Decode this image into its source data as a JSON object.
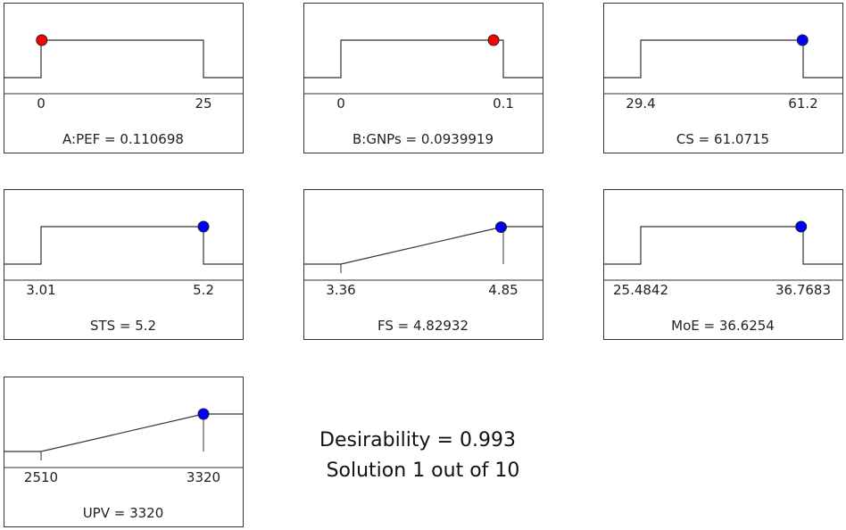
{
  "chart_data": [
    {
      "type": "desirability-ramp",
      "name": "A:PEF",
      "caption": "A:PEF  = 0.110698",
      "low_label": "0",
      "high_label": "25",
      "low": 0,
      "high": 25,
      "value": 0.110698,
      "goal": "in-range",
      "marker_color": "#ff0000"
    },
    {
      "type": "desirability-ramp",
      "name": "B:GNPs",
      "caption": "B:GNPs = 0.0939919",
      "low_label": "0",
      "high_label": "0.1",
      "low": 0,
      "high": 0.1,
      "value": 0.0939919,
      "goal": "in-range",
      "marker_color": "#ff0000"
    },
    {
      "type": "desirability-ramp",
      "name": "CS",
      "caption": "CS = 61.0715",
      "low_label": "29.4",
      "high_label": "61.2",
      "low": 29.4,
      "high": 61.2,
      "value": 61.0715,
      "goal": "in-range",
      "marker_color": "#0000ff"
    },
    {
      "type": "desirability-ramp",
      "name": "STS",
      "caption": "STS = 5.2",
      "low_label": "3.01",
      "high_label": "5.2",
      "low": 3.01,
      "high": 5.2,
      "value": 5.2,
      "goal": "in-range",
      "marker_color": "#0000ff"
    },
    {
      "type": "desirability-ramp",
      "name": "FS",
      "caption": "FS = 4.82932",
      "low_label": "3.36",
      "high_label": "4.85",
      "low": 3.36,
      "high": 4.85,
      "value": 4.82932,
      "goal": "maximize",
      "marker_color": "#0000ff"
    },
    {
      "type": "desirability-ramp",
      "name": "MoE",
      "caption": "MoE = 36.6254",
      "low_label": "25.4842",
      "high_label": "36.7683",
      "low": 25.4842,
      "high": 36.7683,
      "value": 36.6254,
      "goal": "in-range",
      "marker_color": "#0000ff"
    },
    {
      "type": "desirability-ramp",
      "name": "UPV",
      "caption": "UPV = 3320",
      "low_label": "2510",
      "high_label": "3320",
      "low": 2510,
      "high": 3320,
      "value": 3320,
      "goal": "maximize",
      "marker_color": "#0000ff"
    }
  ],
  "summary": {
    "desirability": "Desirability = 0.993",
    "solution": "Solution 1 out of 10"
  }
}
